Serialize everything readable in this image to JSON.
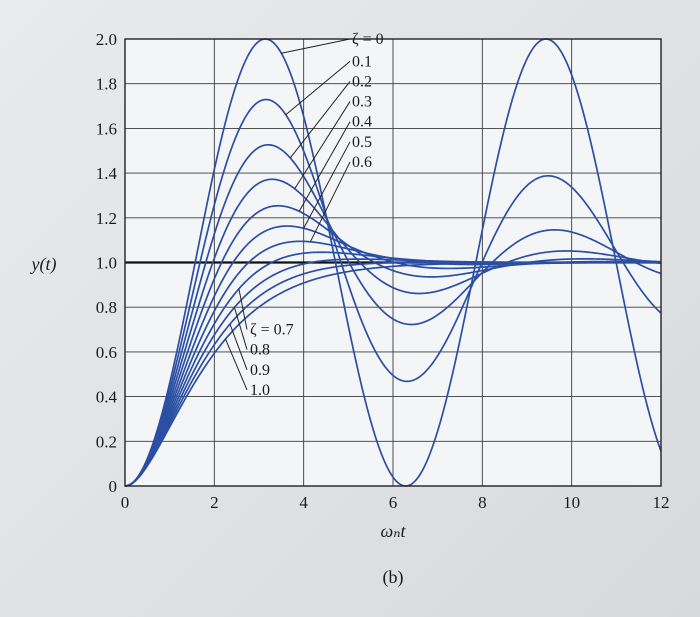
{
  "chart_data": {
    "type": "line",
    "xlabel": "ωₙt",
    "ylabel": "y(t)",
    "caption": "(b)",
    "xlim": [
      0,
      12
    ],
    "ylim": [
      0,
      2
    ],
    "x_ticks": [
      0,
      2,
      4,
      6,
      8,
      10,
      12
    ],
    "x_tick_labels": [
      "0",
      "2",
      "4",
      "6",
      "8",
      "10",
      "12"
    ],
    "y_ticks": [
      0,
      0.2,
      0.4,
      0.6,
      0.8,
      1.0,
      1.2,
      1.4,
      1.6,
      1.8,
      2.0
    ],
    "y_tick_labels": [
      "0",
      "0.2",
      "0.4",
      "0.6",
      "0.8",
      "1.0",
      "1.2",
      "1.4",
      "1.6",
      "1.8",
      "2.0"
    ],
    "grid": true,
    "reference_line_y": 1.0,
    "line_color": "#2b4fa3",
    "series": [
      {
        "zeta": 0.0,
        "label": "ζ = 0"
      },
      {
        "zeta": 0.1,
        "label": "0.1"
      },
      {
        "zeta": 0.2,
        "label": "0.2"
      },
      {
        "zeta": 0.3,
        "label": "0.3"
      },
      {
        "zeta": 0.4,
        "label": "0.4"
      },
      {
        "zeta": 0.5,
        "label": "0.5"
      },
      {
        "zeta": 0.6,
        "label": "0.6"
      },
      {
        "zeta": 0.7,
        "label": "ζ = 0.7"
      },
      {
        "zeta": 0.8,
        "label": "0.8"
      },
      {
        "zeta": 0.9,
        "label": "0.9"
      },
      {
        "zeta": 1.0,
        "label": "1.0"
      }
    ]
  }
}
